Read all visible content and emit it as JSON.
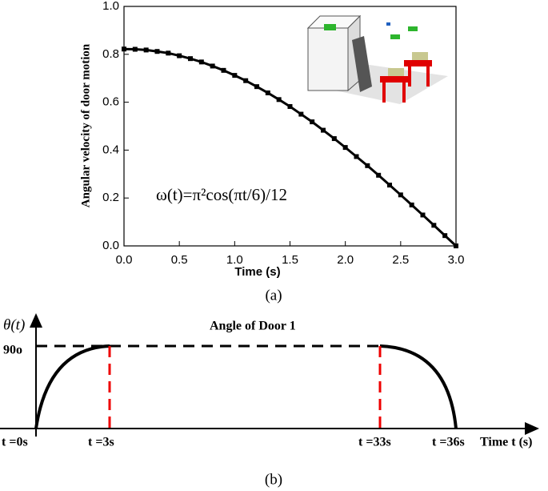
{
  "chart_data": [
    {
      "type": "line",
      "y_label": "Angular velocity of door motion",
      "x_label": "Time (s)",
      "annotation": "ω(t)=π²cos(πt/6)/12",
      "caption": "(a)",
      "x": [
        0.0,
        0.1,
        0.2,
        0.3,
        0.4,
        0.5,
        0.6,
        0.7,
        0.8,
        0.9,
        1.0,
        1.1,
        1.2,
        1.3,
        1.4,
        1.5,
        1.6,
        1.7,
        1.8,
        1.9,
        2.0,
        2.1,
        2.2,
        2.3,
        2.4,
        2.5,
        2.6,
        2.7,
        2.8,
        2.9,
        3.0
      ],
      "series": [
        {
          "color": "#000000",
          "values": [
            0.822,
            0.821,
            0.818,
            0.812,
            0.805,
            0.794,
            0.782,
            0.768,
            0.751,
            0.733,
            0.712,
            0.69,
            0.665,
            0.639,
            0.611,
            0.582,
            0.55,
            0.518,
            0.483,
            0.448,
            0.411,
            0.373,
            0.335,
            0.295,
            0.254,
            0.213,
            0.171,
            0.129,
            0.086,
            0.043,
            0.0
          ]
        }
      ],
      "xlim": [
        0,
        3
      ],
      "ylim": [
        0,
        1
      ],
      "xticks": [
        {
          "value": 0,
          "label": "0.0"
        },
        0.5,
        {
          "value": 1,
          "label": "1.0"
        },
        1.5,
        {
          "value": 2,
          "label": "2.0"
        },
        2.5,
        {
          "value": 3,
          "label": "3.0"
        }
      ],
      "yticks": [
        {
          "value": 0,
          "label": "0.0"
        },
        0.2,
        0.4,
        0.6,
        0.8,
        {
          "value": 1,
          "label": "1.0"
        }
      ],
      "grid": false
    }
  ],
  "diagram": {
    "y_label": "θ(t)",
    "title": "Angle of Door 1",
    "level_label": "90o",
    "time_labels": [
      "t =0s",
      "t =3s",
      "t =33s",
      "t =36s"
    ],
    "x_label": "Time t (s)",
    "caption": "(b)"
  }
}
